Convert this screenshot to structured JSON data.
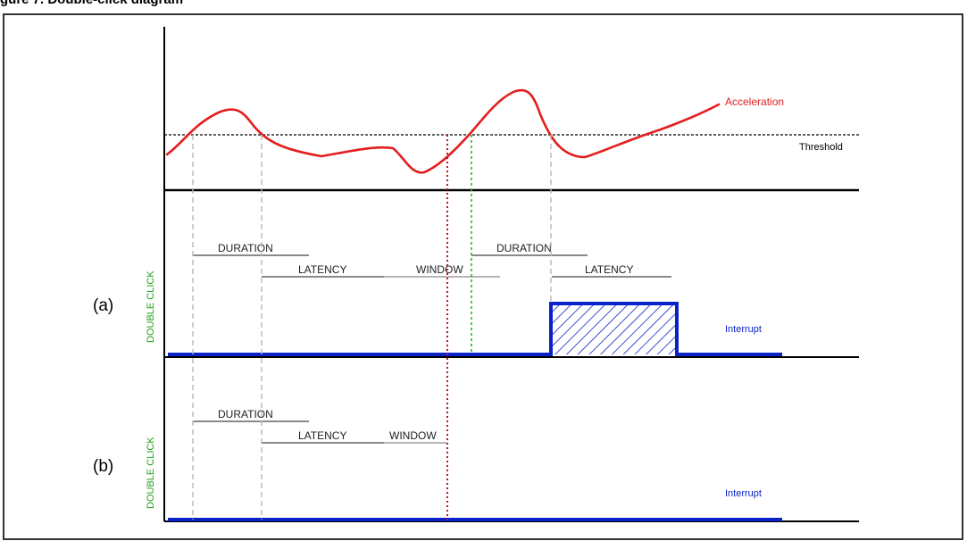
{
  "figure_title": "gure 7. Double-click diagram",
  "top_plot": {
    "signal_label": "Acceleration",
    "threshold_label": "Threshold"
  },
  "panel_a": {
    "label": "(a)",
    "axis_label": "DOUBLE CLICK",
    "intervals": [
      "DURATION",
      "LATENCY",
      "WINDOW",
      "DURATION",
      "LATENCY"
    ],
    "output_label": "Interrupt"
  },
  "panel_b": {
    "label": "(b)",
    "axis_label": "DOUBLE CLICK",
    "intervals": [
      "DURATION",
      "LATENCY",
      "WINDOW"
    ],
    "output_label": "Interrupt"
  },
  "colors": {
    "acceleration": "#e41d1d",
    "threshold": "#000000",
    "interrupt": "#0a22c8",
    "axis_label": "#1fa11f",
    "window_end_marker": "#c8101a",
    "second_click_marker": "#22bb22",
    "guide": "#b8b8b8",
    "interval_bar": "#8a8a8a"
  }
}
